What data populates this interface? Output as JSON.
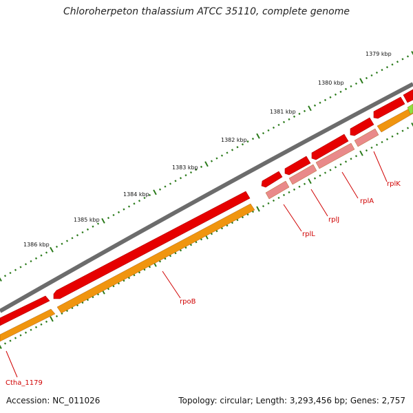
{
  "title": "Chloroherpeton thalassium ATCC 35110, complete genome",
  "accession": "Accession: NC_011026",
  "summary": "Topology: circular; Length: 3,293,456 bp; Genes: 2,757",
  "scale_labels": [
    "1379 kbp",
    "1380 kbp",
    "1381 kbp",
    "1382 kbp",
    "1383 kbp",
    "1384 kbp",
    "1385 kbp",
    "1386 kbp"
  ],
  "gene_labels": [
    "rplK",
    "rplA",
    "rplJ",
    "rplL",
    "rpoB",
    "Ctha_1179"
  ],
  "colors": {
    "backbone": "#7a7a7a",
    "cds_red": "#e60000",
    "cds_red_light": "#e98a8a",
    "cds_orange": "#f0950f",
    "cds_green": "#90e040",
    "tick_major": "#2a7a1a",
    "tick_minor": "#2a7a1a",
    "label": "#d00000"
  }
}
